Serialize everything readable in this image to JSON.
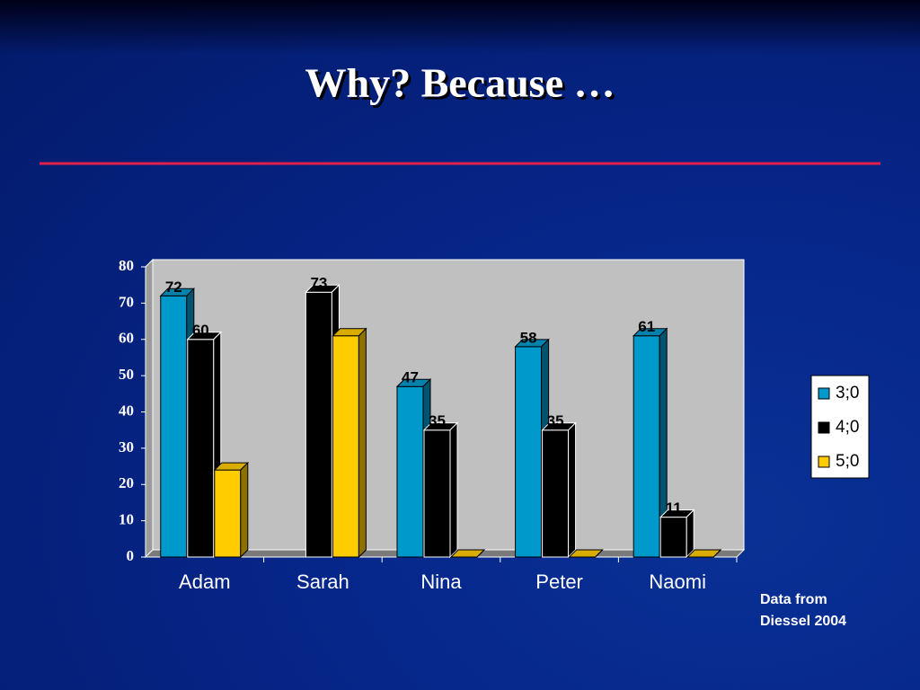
{
  "title": "Why? Because …",
  "chart_data": {
    "type": "bar3d",
    "categories": [
      "Adam",
      "Sarah",
      "Nina",
      "Peter",
      "Naomi"
    ],
    "series": [
      {
        "name": "3;0",
        "color": "#0099cc",
        "data_labels": true,
        "values": [
          72,
          null,
          47,
          58,
          61
        ]
      },
      {
        "name": "4;0",
        "color": "#000000",
        "data_labels": true,
        "values": [
          60,
          73,
          35,
          35,
          11
        ]
      },
      {
        "name": "5;0",
        "color": "#ffcc00",
        "data_labels": false,
        "values": [
          24,
          61,
          0,
          0,
          0
        ]
      }
    ],
    "ylim": [
      0,
      80
    ],
    "yticks": [
      0,
      10,
      20,
      30,
      40,
      50,
      60,
      70,
      80
    ],
    "legend": "right"
  },
  "annotation": [
    "Data from",
    "Diessel 2004"
  ]
}
